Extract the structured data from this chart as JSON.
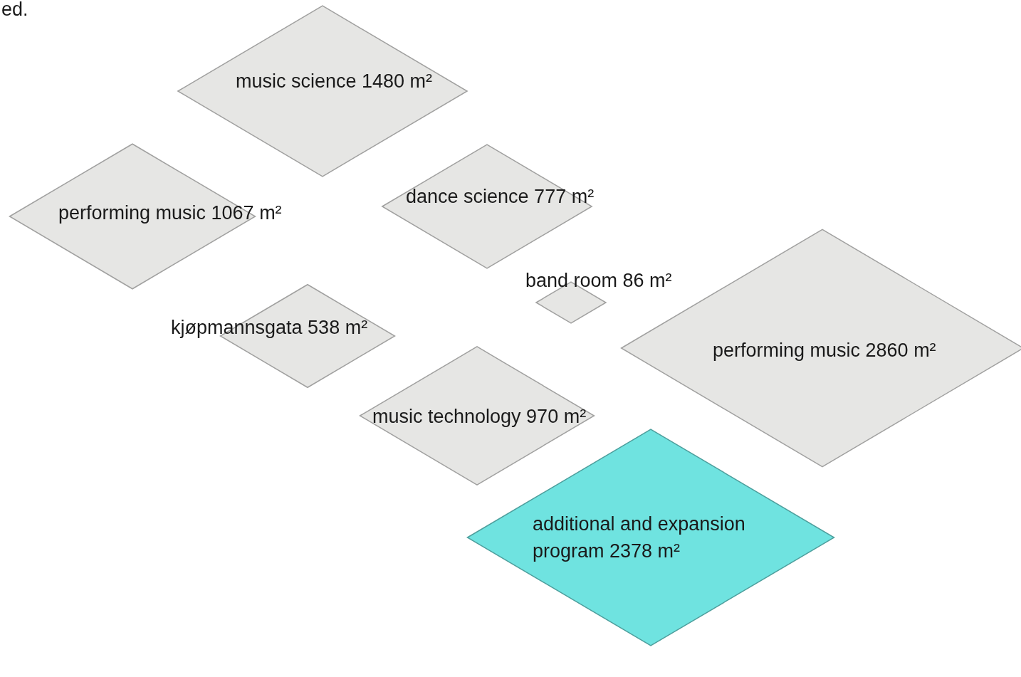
{
  "chart_data": {
    "type": "other",
    "categories": [
      "music science",
      "performing music",
      "dance science",
      "band room",
      "kjøpmannsgata",
      "music technology",
      "performing music",
      "additional and expansion program"
    ],
    "values": [
      1480,
      1067,
      777,
      86,
      538,
      970,
      2860,
      2378
    ],
    "value_labels": [
      "1480 m²",
      "1067 m²",
      "777 m²",
      "86 m²",
      "538 m²",
      "970 m²",
      "2860 m²",
      "2378 m²"
    ],
    "colors": [
      "#e6e6e4",
      "#e6e6e4",
      "#e6e6e4",
      "#e6e6e4",
      "#e6e6e4",
      "#e6e6e4",
      "#e6e6e4",
      "#6fe3e0"
    ],
    "annotations": [
      "ed."
    ]
  }
}
